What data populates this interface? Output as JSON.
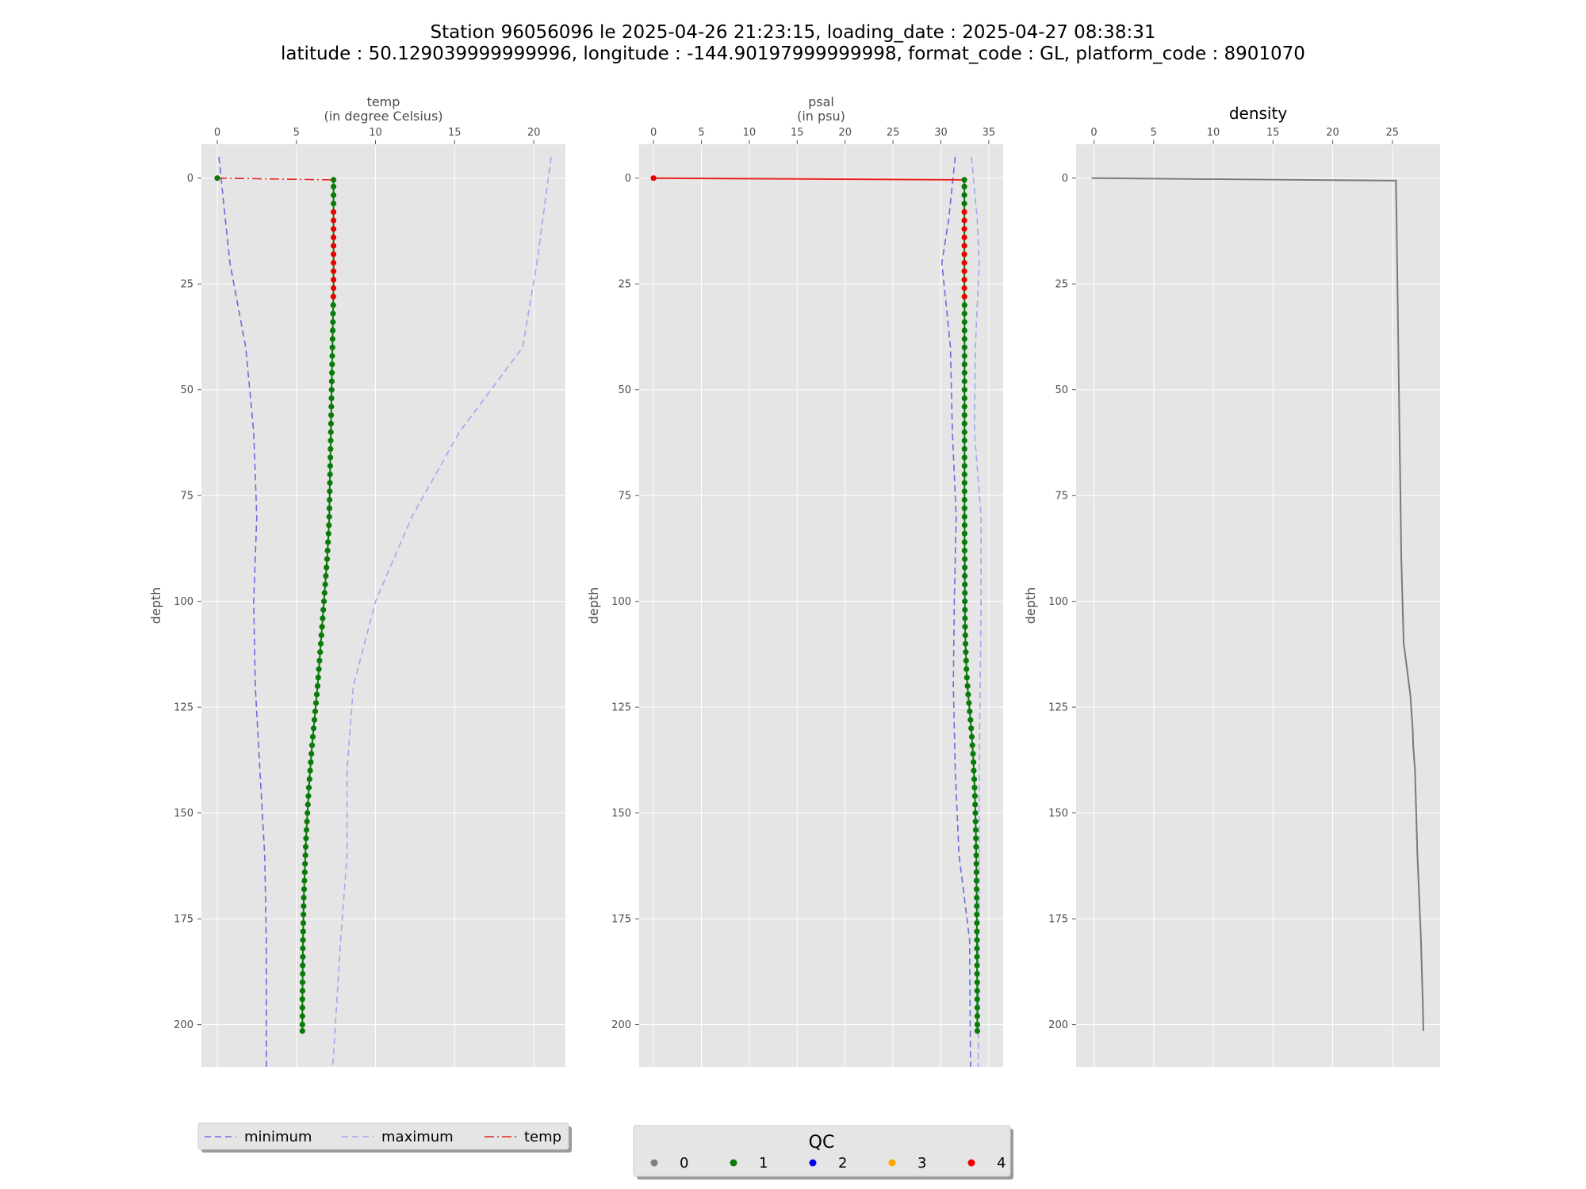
{
  "title": {
    "line1": "Station 96056096 le 2025-04-26 21:23:15, loading_date : 2025-04-27 08:38:31",
    "line2": "latitude : 50.129039999999996, longitude : -144.90197999999998, format_code : GL, platform_code : 8901070"
  },
  "colors": {
    "panel_bg": "#e5e5e5",
    "grid": "#ffffff",
    "minimum": "#6b6bde",
    "maximum": "#a6a6ee",
    "profile": "#e8201c",
    "density": "#7a7a7a",
    "qc0": "#808080",
    "qc1": "#0a7a0a",
    "qc2": "#0000ee",
    "qc3": "#ffa500",
    "qc4": "#ee0000"
  },
  "legend_lines": {
    "items": [
      {
        "label": "minimum",
        "style": "dashed",
        "color": "#6b6bde"
      },
      {
        "label": "maximum",
        "style": "dashed",
        "color": "#a6a6ee"
      },
      {
        "label": "temp",
        "style": "dashdot",
        "color": "#e8201c"
      }
    ]
  },
  "legend_qc": {
    "title": "QC",
    "items": [
      {
        "label": "0",
        "color": "#808080"
      },
      {
        "label": "1",
        "color": "#0a7a0a"
      },
      {
        "label": "2",
        "color": "#0000ee"
      },
      {
        "label": "3",
        "color": "#ffa500"
      },
      {
        "label": "4",
        "color": "#ee0000"
      }
    ]
  },
  "chart_data": [
    {
      "type": "line",
      "title": "temp",
      "subtitle": "(in degree Celsius)",
      "xlabel": "",
      "ylabel": "depth",
      "xlim": [
        -1,
        22
      ],
      "ylim": [
        210,
        -8
      ],
      "xticks": [
        0,
        5,
        10,
        15,
        20
      ],
      "yticks": [
        0,
        25,
        50,
        75,
        100,
        125,
        150,
        175,
        200
      ],
      "grid": true,
      "y_inverted": true,
      "legend": "bottom",
      "series": [
        {
          "name": "minimum",
          "style": "dashed",
          "color": "#6b6bde",
          "x": [
            0.1,
            0.8,
            1.8,
            2.3,
            2.5,
            2.3,
            2.4,
            2.7,
            3.0,
            3.1,
            3.1
          ],
          "y": [
            -5,
            20,
            40,
            60,
            80,
            100,
            120,
            140,
            160,
            180,
            210
          ]
        },
        {
          "name": "maximum",
          "style": "dashed",
          "color": "#a6a6ee",
          "x": [
            21.1,
            20.2,
            19.3,
            15.3,
            12.3,
            10.0,
            8.6,
            8.2,
            8.2,
            7.8,
            7.3
          ],
          "y": [
            -5,
            20,
            40,
            60,
            80,
            100,
            120,
            140,
            160,
            180,
            210
          ]
        },
        {
          "name": "temp",
          "style": "dashdot",
          "color": "#e8201c",
          "x": [
            0,
            7.3
          ],
          "y": [
            0,
            0.4
          ]
        }
      ],
      "profile": {
        "depths": [
          0,
          0.4,
          2,
          4,
          6,
          8,
          10,
          12,
          14,
          16,
          18,
          20,
          22,
          24,
          26,
          28,
          30,
          32,
          34,
          36,
          38,
          40,
          42,
          44,
          46,
          48,
          50,
          52,
          54,
          56,
          58,
          60,
          62,
          64,
          66,
          68,
          70,
          72,
          74,
          76,
          78,
          80,
          82,
          84,
          86,
          88,
          90,
          92,
          94,
          96,
          98,
          100,
          102,
          104,
          106,
          108,
          110,
          112,
          114,
          116,
          118,
          120,
          122,
          124,
          126,
          128,
          130,
          132,
          134,
          136,
          138,
          140,
          142,
          144,
          146,
          148,
          150,
          152,
          154,
          156,
          158,
          160,
          162,
          164,
          166,
          168,
          170,
          172,
          174,
          176,
          178,
          180,
          182,
          184,
          186,
          188,
          190,
          192,
          194,
          196,
          198,
          200,
          201.5
        ],
        "values": [
          0,
          7.35,
          7.35,
          7.35,
          7.35,
          7.35,
          7.35,
          7.35,
          7.35,
          7.35,
          7.35,
          7.35,
          7.35,
          7.35,
          7.35,
          7.34,
          7.33,
          7.32,
          7.31,
          7.3,
          7.29,
          7.28,
          7.27,
          7.26,
          7.25,
          7.24,
          7.23,
          7.22,
          7.21,
          7.2,
          7.19,
          7.18,
          7.17,
          7.16,
          7.15,
          7.14,
          7.13,
          7.12,
          7.11,
          7.1,
          7.09,
          7.08,
          7.06,
          7.03,
          7.0,
          6.97,
          6.94,
          6.9,
          6.86,
          6.82,
          6.78,
          6.74,
          6.7,
          6.66,
          6.62,
          6.58,
          6.54,
          6.5,
          6.46,
          6.42,
          6.38,
          6.34,
          6.29,
          6.24,
          6.19,
          6.14,
          6.09,
          6.04,
          5.99,
          5.95,
          5.91,
          5.87,
          5.83,
          5.79,
          5.76,
          5.73,
          5.7,
          5.67,
          5.64,
          5.61,
          5.59,
          5.57,
          5.55,
          5.53,
          5.51,
          5.49,
          5.47,
          5.46,
          5.45,
          5.44,
          5.43,
          5.42,
          5.41,
          5.41,
          5.4,
          5.4,
          5.39,
          5.39,
          5.38,
          5.38,
          5.38,
          5.38,
          5.38
        ],
        "qc": [
          1,
          1,
          1,
          1,
          1,
          4,
          4,
          4,
          4,
          4,
          4,
          4,
          4,
          4,
          4,
          4,
          1,
          1,
          1,
          1,
          1,
          1,
          1,
          1,
          1,
          1,
          1,
          1,
          1,
          1,
          1,
          1,
          1,
          1,
          1,
          1,
          1,
          1,
          1,
          1,
          1,
          1,
          1,
          1,
          1,
          1,
          1,
          1,
          1,
          1,
          1,
          1,
          1,
          1,
          1,
          1,
          1,
          1,
          1,
          1,
          1,
          1,
          1,
          1,
          1,
          1,
          1,
          1,
          1,
          1,
          1,
          1,
          1,
          1,
          1,
          1,
          1,
          1,
          1,
          1,
          1,
          1,
          1,
          1,
          1,
          1,
          1,
          1,
          1,
          1,
          1,
          1,
          1,
          1,
          1,
          1,
          1,
          1,
          1,
          1,
          1,
          1,
          1
        ]
      }
    },
    {
      "type": "line",
      "title": "psal",
      "subtitle": "(in psu)",
      "xlabel": "",
      "ylabel": "depth",
      "xlim": [
        -1.5,
        36.5
      ],
      "ylim": [
        210,
        -8
      ],
      "xticks": [
        0,
        5,
        10,
        15,
        20,
        25,
        30,
        35
      ],
      "yticks": [
        0,
        25,
        50,
        75,
        100,
        125,
        150,
        175,
        200
      ],
      "grid": true,
      "y_inverted": true,
      "series": [
        {
          "name": "minimum",
          "style": "dashed",
          "color": "#6b6bde",
          "x": [
            31.5,
            30.8,
            30.1,
            31.0,
            31.2,
            31.6,
            31.4,
            31.3,
            31.5,
            31.9,
            33.0,
            33.1
          ],
          "y": [
            -5,
            10,
            20,
            40,
            60,
            80,
            100,
            120,
            140,
            160,
            180,
            210
          ]
        },
        {
          "name": "maximum",
          "style": "dashed",
          "color": "#a6a6ee",
          "x": [
            33.2,
            33.8,
            34.0,
            33.6,
            33.5,
            34.2,
            34.2,
            34.1,
            34.0,
            34.0,
            33.9
          ],
          "y": [
            -5,
            10,
            20,
            40,
            60,
            80,
            100,
            120,
            140,
            160,
            210
          ]
        },
        {
          "name": "psal",
          "style": "solid",
          "color": "#e8201c",
          "x": [
            0,
            32.5
          ],
          "y": [
            0,
            0.4
          ]
        }
      ],
      "profile": {
        "depths": [
          0,
          0.4,
          2,
          4,
          6,
          8,
          10,
          12,
          14,
          16,
          18,
          20,
          22,
          24,
          26,
          28,
          30,
          32,
          34,
          36,
          38,
          40,
          42,
          44,
          46,
          48,
          50,
          52,
          54,
          56,
          58,
          60,
          62,
          64,
          66,
          68,
          70,
          72,
          74,
          76,
          78,
          80,
          82,
          84,
          86,
          88,
          90,
          92,
          94,
          96,
          98,
          100,
          102,
          104,
          106,
          108,
          110,
          112,
          114,
          116,
          118,
          120,
          122,
          124,
          126,
          128,
          130,
          132,
          134,
          136,
          138,
          140,
          142,
          144,
          146,
          148,
          150,
          152,
          154,
          156,
          158,
          160,
          162,
          164,
          166,
          168,
          170,
          172,
          174,
          176,
          178,
          180,
          182,
          184,
          186,
          188,
          190,
          192,
          194,
          196,
          198,
          200,
          201.5
        ],
        "values": [
          0,
          32.45,
          32.45,
          32.45,
          32.45,
          32.45,
          32.45,
          32.45,
          32.45,
          32.45,
          32.45,
          32.45,
          32.45,
          32.45,
          32.45,
          32.46,
          32.47,
          32.47,
          32.47,
          32.47,
          32.47,
          32.47,
          32.47,
          32.47,
          32.47,
          32.47,
          32.47,
          32.47,
          32.47,
          32.47,
          32.47,
          32.47,
          32.47,
          32.47,
          32.47,
          32.47,
          32.47,
          32.47,
          32.47,
          32.47,
          32.47,
          32.47,
          32.48,
          32.48,
          32.48,
          32.48,
          32.49,
          32.49,
          32.49,
          32.5,
          32.5,
          32.5,
          32.51,
          32.52,
          32.53,
          32.55,
          32.57,
          32.6,
          32.63,
          32.67,
          32.72,
          32.78,
          32.85,
          32.93,
          33.01,
          33.09,
          33.16,
          33.23,
          33.29,
          33.35,
          33.4,
          33.44,
          33.48,
          33.52,
          33.55,
          33.58,
          33.6,
          33.62,
          33.64,
          33.66,
          33.68,
          33.69,
          33.7,
          33.71,
          33.72,
          33.73,
          33.74,
          33.75,
          33.75,
          33.76,
          33.76,
          33.77,
          33.77,
          33.78,
          33.78,
          33.78,
          33.79,
          33.79,
          33.79,
          33.8,
          33.8,
          33.8,
          33.8
        ],
        "qc": [
          4,
          1,
          1,
          1,
          1,
          4,
          4,
          4,
          4,
          4,
          4,
          4,
          4,
          4,
          4,
          4,
          1,
          1,
          1,
          1,
          1,
          1,
          1,
          1,
          1,
          1,
          1,
          1,
          1,
          1,
          1,
          1,
          1,
          1,
          1,
          1,
          1,
          1,
          1,
          1,
          1,
          1,
          1,
          1,
          1,
          1,
          1,
          1,
          1,
          1,
          1,
          1,
          1,
          1,
          1,
          1,
          1,
          1,
          1,
          1,
          1,
          1,
          1,
          1,
          1,
          1,
          1,
          1,
          1,
          1,
          1,
          1,
          1,
          1,
          1,
          1,
          1,
          1,
          1,
          1,
          1,
          1,
          1,
          1,
          1,
          1,
          1,
          1,
          1,
          1,
          1,
          1,
          1,
          1,
          1,
          1,
          1,
          1,
          1,
          1,
          1,
          1,
          1
        ]
      }
    },
    {
      "type": "line",
      "title": "density",
      "subtitle": "",
      "xlabel": "",
      "ylabel": "depth",
      "xlim": [
        -1.5,
        29
      ],
      "ylim": [
        210,
        -8
      ],
      "xticks": [
        0,
        5,
        10,
        15,
        20,
        25
      ],
      "yticks": [
        0,
        25,
        50,
        75,
        100,
        125,
        150,
        175,
        200
      ],
      "grid": true,
      "y_inverted": true,
      "series": [
        {
          "name": "",
          "style": "solid",
          "color": "#7a7a7a",
          "x": [
            -0.2,
            25.3,
            25.35,
            25.45,
            25.55,
            25.65,
            25.75,
            25.85,
            25.95,
            26.05,
            26.5,
            26.7,
            26.75,
            26.9,
            27.0,
            27.1,
            27.25,
            27.4,
            27.55,
            27.6
          ],
          "y": [
            0,
            0.6,
            10,
            30,
            50,
            70,
            90,
            100,
            110,
            112,
            122,
            130,
            134,
            140,
            150,
            160,
            170,
            180,
            195,
            201.5
          ]
        }
      ]
    }
  ]
}
